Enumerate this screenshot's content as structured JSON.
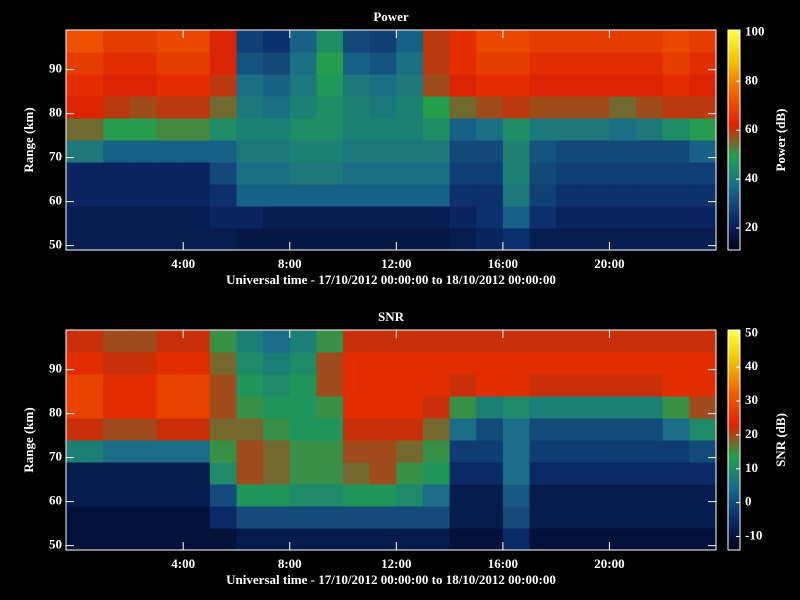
{
  "chart_data": [
    {
      "type": "heatmap",
      "title": "Power",
      "xlabel": "Universal time - 17/10/2012 00:00:00 to 18/10/2012 00:00:00",
      "ylabel": "Range (km)",
      "colorbar_label": "Power (dB)",
      "xlim": [
        -0.4,
        24
      ],
      "ylim": [
        49,
        99
      ],
      "xticks": [
        {
          "value": 4,
          "label": "4:00"
        },
        {
          "value": 8,
          "label": "8:00"
        },
        {
          "value": 12,
          "label": "12:00"
        },
        {
          "value": 16,
          "label": "16:00"
        },
        {
          "value": 20,
          "label": "20:00"
        }
      ],
      "yticks": [
        50,
        60,
        70,
        80,
        90
      ],
      "clim": [
        11,
        101
      ],
      "cticks": [
        20,
        40,
        60,
        80,
        100
      ],
      "colormap": [
        "#000018",
        "#0a2a6a",
        "#1a6a8a",
        "#20a050",
        "#e02000",
        "#f06000",
        "#f0c000",
        "#ffff40"
      ],
      "x_edges": [
        -0.4,
        1,
        2,
        3,
        4,
        5,
        6,
        7,
        8,
        9,
        10,
        11,
        12,
        13,
        14,
        15,
        16,
        17,
        18,
        19,
        20,
        21,
        22,
        23,
        24
      ],
      "y_edges": [
        49,
        54,
        59,
        64,
        69,
        74,
        79,
        84,
        89,
        94,
        99
      ],
      "z": [
        [
          20,
          20,
          20,
          20,
          20,
          20,
          18,
          18,
          18,
          18,
          18,
          18,
          18,
          18,
          20,
          22,
          25,
          20,
          20,
          20,
          20,
          20,
          20,
          20
        ],
        [
          20,
          20,
          20,
          20,
          20,
          22,
          22,
          20,
          20,
          20,
          20,
          20,
          20,
          20,
          22,
          25,
          35,
          25,
          22,
          22,
          22,
          22,
          22,
          22
        ],
        [
          22,
          22,
          22,
          22,
          22,
          25,
          35,
          35,
          35,
          35,
          35,
          35,
          35,
          35,
          25,
          25,
          40,
          28,
          25,
          25,
          25,
          25,
          25,
          25
        ],
        [
          22,
          22,
          22,
          22,
          22,
          30,
          38,
          38,
          40,
          40,
          38,
          38,
          38,
          38,
          28,
          28,
          42,
          30,
          28,
          28,
          28,
          28,
          28,
          28
        ],
        [
          40,
          35,
          35,
          35,
          35,
          35,
          40,
          40,
          42,
          42,
          40,
          40,
          40,
          40,
          30,
          30,
          42,
          32,
          30,
          30,
          30,
          30,
          30,
          35
        ],
        [
          55,
          50,
          50,
          52,
          52,
          45,
          42,
          42,
          45,
          45,
          42,
          42,
          42,
          45,
          35,
          38,
          45,
          40,
          40,
          40,
          38,
          40,
          45,
          50
        ],
        [
          62,
          60,
          58,
          60,
          60,
          55,
          40,
          38,
          42,
          45,
          42,
          40,
          42,
          50,
          55,
          58,
          60,
          58,
          58,
          58,
          55,
          58,
          60,
          60
        ],
        [
          65,
          62,
          62,
          65,
          65,
          60,
          38,
          35,
          40,
          48,
          40,
          38,
          40,
          58,
          62,
          65,
          65,
          62,
          62,
          62,
          62,
          62,
          65,
          62
        ],
        [
          68,
          65,
          65,
          68,
          68,
          62,
          32,
          30,
          38,
          50,
          35,
          32,
          38,
          60,
          65,
          68,
          68,
          65,
          65,
          65,
          65,
          65,
          68,
          65
        ],
        [
          72,
          68,
          68,
          70,
          70,
          62,
          28,
          25,
          35,
          45,
          30,
          28,
          35,
          60,
          65,
          70,
          70,
          68,
          68,
          68,
          68,
          68,
          70,
          68
        ]
      ]
    },
    {
      "type": "heatmap",
      "title": "SNR",
      "xlabel": "Universal time - 17/10/2012 00:00:00 to 18/10/2012 00:00:00",
      "ylabel": "Range (km)",
      "colorbar_label": "SNR (dB)",
      "xlim": [
        -0.4,
        24
      ],
      "ylim": [
        49,
        99
      ],
      "xticks": [
        {
          "value": 4,
          "label": "4:00"
        },
        {
          "value": 8,
          "label": "8:00"
        },
        {
          "value": 12,
          "label": "12:00"
        },
        {
          "value": 16,
          "label": "16:00"
        },
        {
          "value": 20,
          "label": "20:00"
        }
      ],
      "yticks": [
        50,
        60,
        70,
        80,
        90
      ],
      "clim": [
        -14,
        51
      ],
      "cticks": [
        -10,
        0,
        10,
        20,
        30,
        40,
        50
      ],
      "colormap": [
        "#000018",
        "#0a2a6a",
        "#1a6a8a",
        "#20a050",
        "#e02000",
        "#f06000",
        "#f0c000",
        "#ffff40"
      ],
      "x_edges": [
        -0.4,
        1,
        2,
        3,
        4,
        5,
        6,
        7,
        8,
        9,
        10,
        11,
        12,
        13,
        14,
        15,
        16,
        17,
        18,
        19,
        20,
        21,
        22,
        23,
        24
      ],
      "y_edges": [
        49,
        54,
        59,
        64,
        69,
        74,
        79,
        84,
        89,
        94,
        99
      ],
      "z": [
        [
          -10,
          -10,
          -10,
          -10,
          -10,
          -10,
          -8,
          -8,
          -8,
          -8,
          -8,
          -8,
          -8,
          -8,
          -10,
          -10,
          -5,
          -10,
          -10,
          -10,
          -10,
          -10,
          -10,
          -10
        ],
        [
          -10,
          -10,
          -10,
          -10,
          -10,
          -5,
          0,
          0,
          0,
          0,
          0,
          0,
          0,
          0,
          -8,
          -8,
          0,
          -8,
          -8,
          -8,
          -8,
          -8,
          -8,
          -8
        ],
        [
          -8,
          -8,
          -8,
          -8,
          -8,
          0,
          12,
          12,
          10,
          10,
          12,
          12,
          10,
          5,
          -8,
          -8,
          2,
          -8,
          -8,
          -8,
          -8,
          -8,
          -8,
          -8
        ],
        [
          -8,
          -8,
          -8,
          -8,
          -8,
          10,
          20,
          18,
          15,
          15,
          18,
          20,
          15,
          12,
          -5,
          -5,
          5,
          -5,
          -5,
          -5,
          -5,
          -5,
          -5,
          -5
        ],
        [
          8,
          5,
          5,
          5,
          5,
          15,
          20,
          18,
          15,
          15,
          20,
          20,
          18,
          15,
          -2,
          -2,
          5,
          -2,
          -2,
          -2,
          -2,
          -2,
          -2,
          0
        ],
        [
          22,
          20,
          20,
          22,
          22,
          18,
          18,
          15,
          12,
          12,
          22,
          22,
          22,
          18,
          5,
          0,
          5,
          0,
          0,
          0,
          0,
          0,
          5,
          10
        ],
        [
          28,
          25,
          25,
          28,
          28,
          20,
          15,
          12,
          12,
          15,
          25,
          25,
          25,
          22,
          15,
          8,
          10,
          8,
          8,
          8,
          8,
          8,
          15,
          20
        ],
        [
          28,
          25,
          25,
          28,
          28,
          20,
          12,
          10,
          12,
          20,
          25,
          25,
          25,
          25,
          22,
          25,
          25,
          22,
          22,
          22,
          22,
          22,
          25,
          25
        ],
        [
          25,
          22,
          22,
          25,
          25,
          18,
          10,
          8,
          10,
          20,
          25,
          25,
          25,
          25,
          25,
          25,
          25,
          25,
          25,
          25,
          25,
          25,
          25,
          25
        ],
        [
          22,
          20,
          20,
          22,
          22,
          15,
          8,
          5,
          8,
          15,
          22,
          22,
          22,
          22,
          22,
          22,
          22,
          22,
          22,
          22,
          22,
          22,
          22,
          22
        ]
      ]
    }
  ]
}
